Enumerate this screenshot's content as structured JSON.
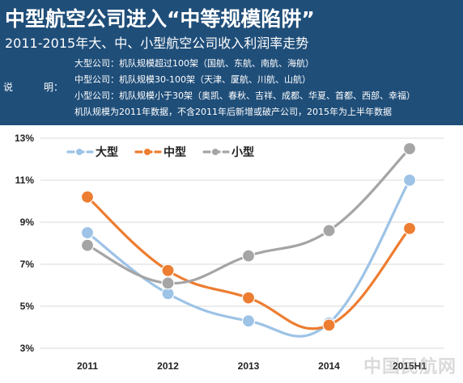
{
  "header": {
    "title": "中型航空公司进入“中等规模陷阱”",
    "subtitle": "2011-2015年大、中、小型航空公司收入利润率走势",
    "note_label_1": "说",
    "note_label_2": "明：",
    "notes": [
      "大型公司：机队规模超过100架（国航、东航、南航、海航）",
      "中型公司：机队规模30-100架（天津、厦航、川航、山航）",
      "小型公司：机队规模小于30架（奥凯、春秋、吉祥、成都、华夏、首都、西部、幸福）",
      "机队规模为2011年数据，不含2011年后新增或破产公司，2015年为上半年数据"
    ],
    "background_color": "#1f4e79"
  },
  "watermark": "中国民航网",
  "chart_data": {
    "type": "line",
    "title": "",
    "xlabel": "",
    "ylabel": "",
    "categories": [
      "2011",
      "2012",
      "2013",
      "2014",
      "2015H1"
    ],
    "yticks": [
      "3%",
      "5%",
      "7%",
      "9%",
      "11%",
      "13%"
    ],
    "ylim": [
      3,
      13
    ],
    "grid": "horizontal",
    "smooth": true,
    "legend_placement": "top-left",
    "series": [
      {
        "name": "大型",
        "color": "#9dc3e6",
        "values": [
          8.5,
          5.6,
          4.3,
          4.2,
          11.0
        ]
      },
      {
        "name": "中型",
        "color": "#ed7d31",
        "values": [
          10.2,
          6.7,
          5.4,
          4.1,
          8.7
        ]
      },
      {
        "name": "小型",
        "color": "#a5a5a5",
        "values": [
          7.9,
          6.1,
          7.4,
          8.6,
          12.5
        ]
      }
    ]
  }
}
